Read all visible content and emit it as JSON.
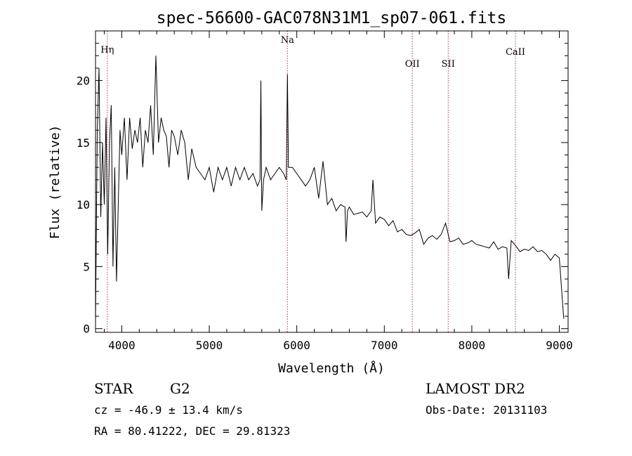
{
  "chart_data": {
    "type": "line",
    "title": "spec-56600-GAC078N31M1_sp07-061.fits",
    "xlabel": "Wavelength (Å)",
    "ylabel": "Flux (relative)",
    "xlim": [
      3700,
      9100
    ],
    "ylim": [
      -0.3,
      24
    ],
    "xticks": [
      4000,
      5000,
      6000,
      7000,
      8000,
      9000
    ],
    "yticks": [
      0,
      5,
      10,
      15,
      20
    ],
    "grid": false,
    "line_color": "#000000",
    "marker_color": "#b03030",
    "lines": [
      {
        "label": "Hη",
        "wavelength": 3835
      },
      {
        "label": "Na",
        "wavelength": 5893
      },
      {
        "label": "OII",
        "wavelength": 7320
      },
      {
        "label": "SII",
        "wavelength": 7730
      },
      {
        "label": "CaII",
        "wavelength": 8498
      }
    ],
    "series": [
      {
        "x": [
          3700,
          3720,
          3740,
          3760,
          3780,
          3800,
          3820,
          3840,
          3860,
          3880,
          3900,
          3920,
          3940,
          3960,
          3980,
          4000,
          4030,
          4060,
          4090,
          4120,
          4150,
          4180,
          4210,
          4240,
          4270,
          4300,
          4330,
          4360,
          4390,
          4420,
          4450,
          4480,
          4510,
          4540,
          4570,
          4600,
          4640,
          4680,
          4720,
          4760,
          4800,
          4850,
          4900,
          4950,
          5000,
          5050,
          5100,
          5150,
          5200,
          5250,
          5300,
          5350,
          5400,
          5450,
          5500,
          5550,
          5580,
          5590,
          5600,
          5620,
          5650,
          5700,
          5750,
          5800,
          5850,
          5880,
          5893,
          5905,
          5950,
          6000,
          6050,
          6100,
          6150,
          6200,
          6250,
          6300,
          6350,
          6400,
          6450,
          6500,
          6550,
          6563,
          6580,
          6600,
          6650,
          6700,
          6750,
          6800,
          6850,
          6870,
          6900,
          6950,
          7000,
          7050,
          7100,
          7150,
          7200,
          7250,
          7300,
          7350,
          7400,
          7450,
          7500,
          7550,
          7600,
          7650,
          7700,
          7750,
          7800,
          7850,
          7900,
          7950,
          8000,
          8050,
          8100,
          8150,
          8200,
          8250,
          8300,
          8350,
          8400,
          8420,
          8450,
          8500,
          8550,
          8600,
          8650,
          8700,
          8750,
          8800,
          8850,
          8900,
          8950,
          9000,
          9050
        ],
        "y": [
          0.5,
          16,
          21,
          9,
          15,
          10,
          17,
          6,
          15,
          18,
          5,
          13,
          3.8,
          10,
          16,
          14,
          17,
          12,
          17,
          14.5,
          16,
          15,
          17,
          13,
          16,
          15,
          18,
          14,
          22,
          15,
          17,
          16,
          15.5,
          13,
          16,
          15.5,
          14,
          16,
          15,
          12,
          14.5,
          13,
          12.5,
          12,
          13,
          11,
          13,
          12,
          13,
          11.5,
          13,
          12,
          13,
          12,
          12.5,
          11.5,
          12,
          20,
          9.5,
          12,
          13,
          12,
          12.5,
          13,
          12.5,
          12,
          20.5,
          13,
          13,
          12.5,
          12,
          11.5,
          12,
          13,
          10.5,
          13.5,
          10,
          10.5,
          9.5,
          10,
          9.8,
          7,
          9.5,
          9.8,
          9.2,
          9.3,
          9.4,
          9,
          9.5,
          12,
          8.5,
          9,
          8.8,
          8.3,
          8.7,
          7.8,
          8.0,
          7.6,
          7.5,
          7.7,
          8.0,
          6.8,
          7.3,
          7.5,
          7.2,
          7.6,
          8.5,
          7.0,
          7.1,
          7.3,
          6.8,
          6.9,
          7.1,
          6.8,
          6.7,
          6.6,
          6.5,
          7.0,
          6.4,
          6.6,
          6.5,
          4.0,
          7.1,
          6.7,
          6.2,
          6.4,
          6.3,
          6.6,
          6.2,
          6.3,
          6.0,
          5.5,
          6.0,
          5.7,
          0.8
        ]
      }
    ]
  },
  "footer": {
    "object_class": "STAR",
    "subclass": "G2",
    "survey": "LAMOST DR2",
    "velocity": "cz = -46.9 ± 13.4 km/s",
    "obs_date": "Obs-Date: 20131103",
    "coords": "RA =  80.41222, DEC =  29.81323"
  }
}
